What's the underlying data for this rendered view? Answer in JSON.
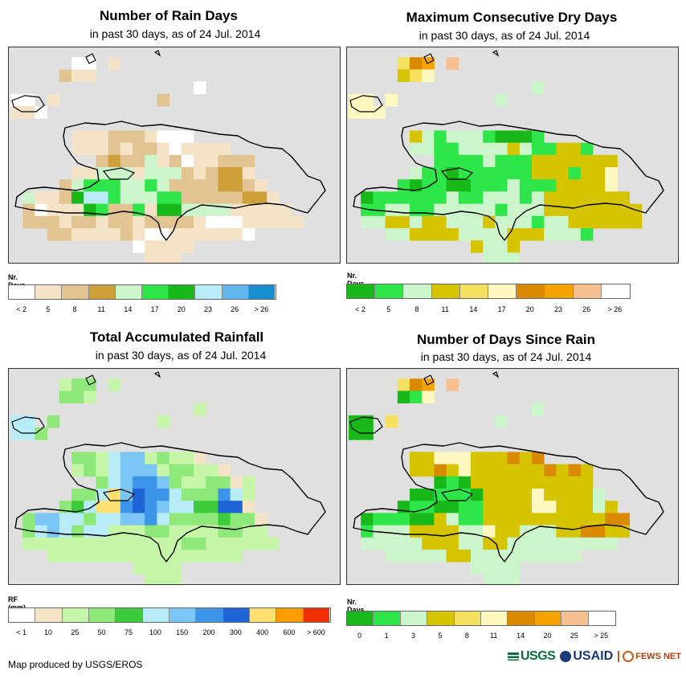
{
  "panels": [
    {
      "title": "Number of Rain Days",
      "subtitle": "in past 30 days, as of 24 Jul. 2014",
      "legend_title": "Nr. Days",
      "legend_colors": [
        "#ffffff",
        "#f5e3c8",
        "#e2c493",
        "#cda03a",
        "#ccf5cc",
        "#2ee64a",
        "#17b817",
        "#b8ecf8",
        "#62b6ee",
        "#1a8fcf"
      ],
      "legend_ticks": [
        "< 2",
        "5",
        "8",
        "11",
        "14",
        "17",
        "20",
        "23",
        "26",
        "> 26"
      ],
      "cells": [
        "___________________________",
        "_____AA_B__________________",
        "____CBB____________________",
        "_______________A___________",
        "AA_B________C______________",
        "BBA_________________________",
        "_____________________________",
        "_____BBBCCCBAAA_____________",
        "_____BBBCBCCBABBBB__________",
        "_______CDCCEBCABBCCC________",
        "_____BBEEEBEEECBCDDB________",
        "____CEFFFEEFECCCCDDCB_______",
        "_EBBCGHHFEEEFFCCCCCDDB______",
        "_CABBBGFCCFBGGEEEEBBBBB_____",
        "_CCCBCCBCCBCCCCBAAABBBBB____",
        "___CCBBBBCBAABBBBBBA________",
        "__________ABBBB_____________",
        "___________BBB_______________"
      ]
    },
    {
      "title": "Maximum Consecutive Dry Days",
      "subtitle": "in past 30 days, as of 24 Jul. 2014",
      "legend_title": "Nr. Days",
      "legend_colors": [
        "#17b817",
        "#2ee64a",
        "#ccf5cc",
        "#d6c400",
        "#f5e060",
        "#fff8c0",
        "#d98a00",
        "#f5a300",
        "#f8c090",
        "#ffffff"
      ],
      "legend_ticks": [
        "< 2",
        "5",
        "8",
        "11",
        "14",
        "17",
        "20",
        "23",
        "26",
        "> 26"
      ],
      "cells": [
        "___________________________",
        "____EGH_I__________________",
        "____DEF____________________",
        "_______________C___________",
        "FF_F________C______________",
        "FFF_________________________",
        "_____________________________",
        "_____DCBCCCBAAAB____________",
        "_____CCBBCCCCDCBBDDB________",
        "_______BBBBCBBBDDDDDDD______",
        "_____CBBABBBBBBDDDBDDF______",
        "____BABBAABBBCBBBDDDDF______",
        "_ABBBBBBCBBCCCBCDDDDDDD_____",
        "_BBCCBBCCCCCBCCCDDDDDDDD____",
        "_CCDDCDDCCCDCCCBCCDDDDDD____",
        "___CCDDDDCCCCDDDCCCB________",
        "__________DCCD______________",
        "___________CCC_______________"
      ]
    },
    {
      "title": "Total Accumulated Rainfall",
      "subtitle": "in past 30 days, as of 24 Jul. 2014",
      "legend_title": "RF (mm)",
      "legend_colors": [
        "#ffffff",
        "#f5e3c8",
        "#c6f7a8",
        "#8ee87a",
        "#3ccc3c",
        "#b8ecf8",
        "#7cc6f5",
        "#3c95e8",
        "#1f64d6",
        "#ffe070",
        "#ff9d00",
        "#f03000"
      ],
      "legend_ticks": [
        "< 1",
        "10",
        "25",
        "50",
        "75",
        "100",
        "150",
        "200",
        "300",
        "400",
        "600",
        "> 600"
      ],
      "cells": [
        "___________________________",
        "____CDD_C__________________",
        "____DDC____________________",
        "_______________C___________",
        "FF_D________C_______________",
        "FFD_________________________",
        "_____________________________",
        "_____DDCFGGCDCCB____________",
        "_____CDCFGGGCDDCCB__________",
        "_______DFGHHGDCCDDBC________",
        "_____DDFJGIHHFDDDHFC________",
        "____DEFJJHIHGFFEEIIB________",
        "_DGGFFDFFGGHFDDDDEDDB_______",
        "_DFGFDFFCCCDDCCCCDDCC_______",
        "_CCCCCCCCCCCCCDDCCCCCC______",
        "___CCCCCCCCCCCCCCCC_________",
        "__________CCCC______________",
        "___________CCC______________"
      ]
    },
    {
      "title": "Number of Days Since Rain",
      "subtitle": "in past 30 days, as of 24 Jul. 2014",
      "legend_title": "Nr. Days",
      "legend_colors": [
        "#17b817",
        "#2ee64a",
        "#ccf5cc",
        "#d6c400",
        "#f5e060",
        "#fff8c0",
        "#d98a00",
        "#f5a300",
        "#f8c090",
        "#ffffff"
      ],
      "legend_ticks": [
        "0",
        "1",
        "3",
        "5",
        "8",
        "11",
        "14",
        "20",
        "25",
        "> 25"
      ],
      "cells": [
        "___________________________",
        "____EGH_I__________________",
        "____ABF____________________",
        "_______________C___________",
        "AA_E________C______________",
        "AA_________________________",
        "_____________________________",
        "_____DDFFFDDDGDG____________",
        "_____DDGDFDDDDDDGDGD________",
        "_______ABADDDDDDDDDD________",
        "_____AABBBADDDDFDDDDC_______",
        "____ABBAABBDDDDFFDDDCD______",
        "_ABBBAADCBBDDDDDDDDDDGG_____",
        "_BCCCDDDDCCFDDCCCDDGGDD_____",
        "_CCCCCDDDCCDDCCCCCCCCC______",
        "___CCCCCDDCCCCCCCCC_________",
        "__________CCCC______________",
        "___________CCC______________"
      ]
    }
  ],
  "footer": {
    "credit": "Map produced by USGS/EROS",
    "logo_usgs": "USGS",
    "logo_usaid": "USAID",
    "logo_fews": "FEWS NET"
  }
}
